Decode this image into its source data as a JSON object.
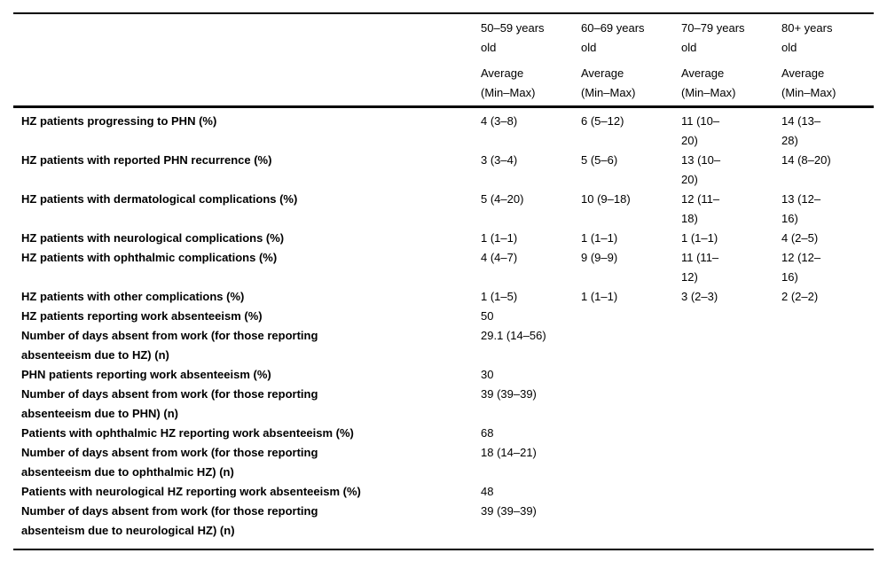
{
  "colors": {
    "background": "#ffffff",
    "text": "#000000",
    "rule": "#000000"
  },
  "table": {
    "corner_header": "",
    "columns": [
      {
        "age": "50–59 years\nold",
        "stat": "Average\n(Min–Max)"
      },
      {
        "age": "60–69 years\nold",
        "stat": "Average\n(Min–Max)"
      },
      {
        "age": "70–79 years\nold",
        "stat": "Average\n(Min–Max)"
      },
      {
        "age": "80+ years\nold",
        "stat": "Average\n(Min–Max)"
      }
    ],
    "rows": [
      {
        "label": "HZ patients progressing to PHN (%)",
        "values": [
          "4 (3–8)",
          "6 (5–12)",
          "11 (10–\n20)",
          "14 (13–\n28)"
        ]
      },
      {
        "label": "HZ patients with reported PHN recurrence (%)",
        "values": [
          "3 (3–4)",
          "5 (5–6)",
          "13 (10–\n20)",
          "14 (8–20)"
        ]
      },
      {
        "label": "HZ patients with dermatological complications (%)",
        "values": [
          "5 (4–20)",
          "10 (9–18)",
          "12 (11–\n18)",
          "13 (12–\n16)"
        ]
      },
      {
        "label": "HZ patients with neurological complications (%)",
        "values": [
          "1 (1–1)",
          "1 (1–1)",
          "1 (1–1)",
          "4 (2–5)"
        ]
      },
      {
        "label": "HZ patients with ophthalmic complications (%)",
        "values": [
          "4 (4–7)",
          "9 (9–9)",
          "11 (11–\n12)",
          "12 (12–\n16)"
        ]
      },
      {
        "label": "HZ patients with other complications (%)",
        "values": [
          "1 (1–5)",
          "1 (1–1)",
          "3 (2–3)",
          "2 (2–2)"
        ]
      },
      {
        "label": "HZ patients reporting work absenteeism (%)",
        "values": [
          "50",
          "",
          "",
          ""
        ]
      },
      {
        "label": "Number of days absent from work (for those reporting\nabsenteeism due to HZ) (n)",
        "values": [
          "29.1 (14–56)",
          "",
          "",
          ""
        ]
      },
      {
        "label": "PHN patients reporting work absenteeism (%)",
        "values": [
          "30",
          "",
          "",
          ""
        ]
      },
      {
        "label": "Number of days absent from work (for those reporting\nabsenteeism due to PHN) (n)",
        "values": [
          "39 (39–39)",
          "",
          "",
          ""
        ]
      },
      {
        "label": "Patients with ophthalmic HZ reporting work absenteeism (%)",
        "values": [
          "68",
          "",
          "",
          ""
        ]
      },
      {
        "label": "Number of days absent from work (for those reporting\nabsenteeism due to ophthalmic HZ) (n)",
        "values": [
          "18 (14–21)",
          "",
          "",
          ""
        ]
      },
      {
        "label": "Patients with neurological HZ reporting work absenteeism (%)",
        "values": [
          "48",
          "",
          "",
          ""
        ]
      },
      {
        "label": "Number of days absent from work (for those reporting\nabsenteism due to neurological HZ) (n)",
        "values": [
          "39 (39–39)",
          "",
          "",
          ""
        ]
      }
    ]
  }
}
